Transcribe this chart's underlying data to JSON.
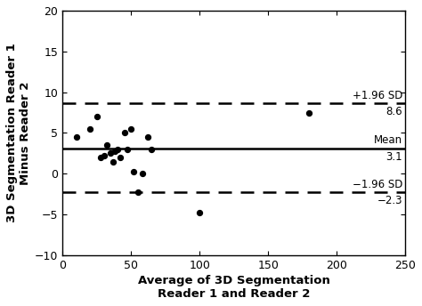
{
  "x_data": [
    10,
    20,
    25,
    28,
    30,
    32,
    35,
    37,
    38,
    40,
    42,
    45,
    47,
    50,
    52,
    55,
    58,
    62,
    65,
    100,
    180
  ],
  "y_data": [
    4.5,
    5.5,
    7.0,
    2.0,
    2.2,
    3.5,
    2.5,
    1.5,
    2.8,
    3.0,
    2.0,
    5.0,
    3.0,
    5.5,
    0.2,
    -2.3,
    0.0,
    4.5,
    3.0,
    -4.8,
    7.5
  ],
  "mean_line": 3.1,
  "upper_limit": 8.6,
  "lower_limit": -2.3,
  "xlabel": "Average of 3D Segmentation\nReader 1 and Reader 2",
  "ylabel": "3D Segmentation Reader 1\nMinus Reader 2",
  "xlim": [
    0,
    250
  ],
  "ylim": [
    -10,
    20
  ],
  "xticks": [
    0,
    50,
    100,
    150,
    200,
    250
  ],
  "yticks": [
    -10,
    -5,
    0,
    5,
    10,
    15,
    20
  ],
  "annot_upper_label": "+1.96 SD",
  "annot_upper_val": "8.6",
  "annot_mean_label": "Mean",
  "annot_mean_val": "3.1",
  "annot_lower_label": "−1.96 SD",
  "annot_lower_val": "−2.3",
  "line_color": "#000000",
  "dot_color": "#000000",
  "bg_color": "#ffffff",
  "label_fontsize": 9.5,
  "tick_fontsize": 9,
  "annot_fontsize": 8.5
}
